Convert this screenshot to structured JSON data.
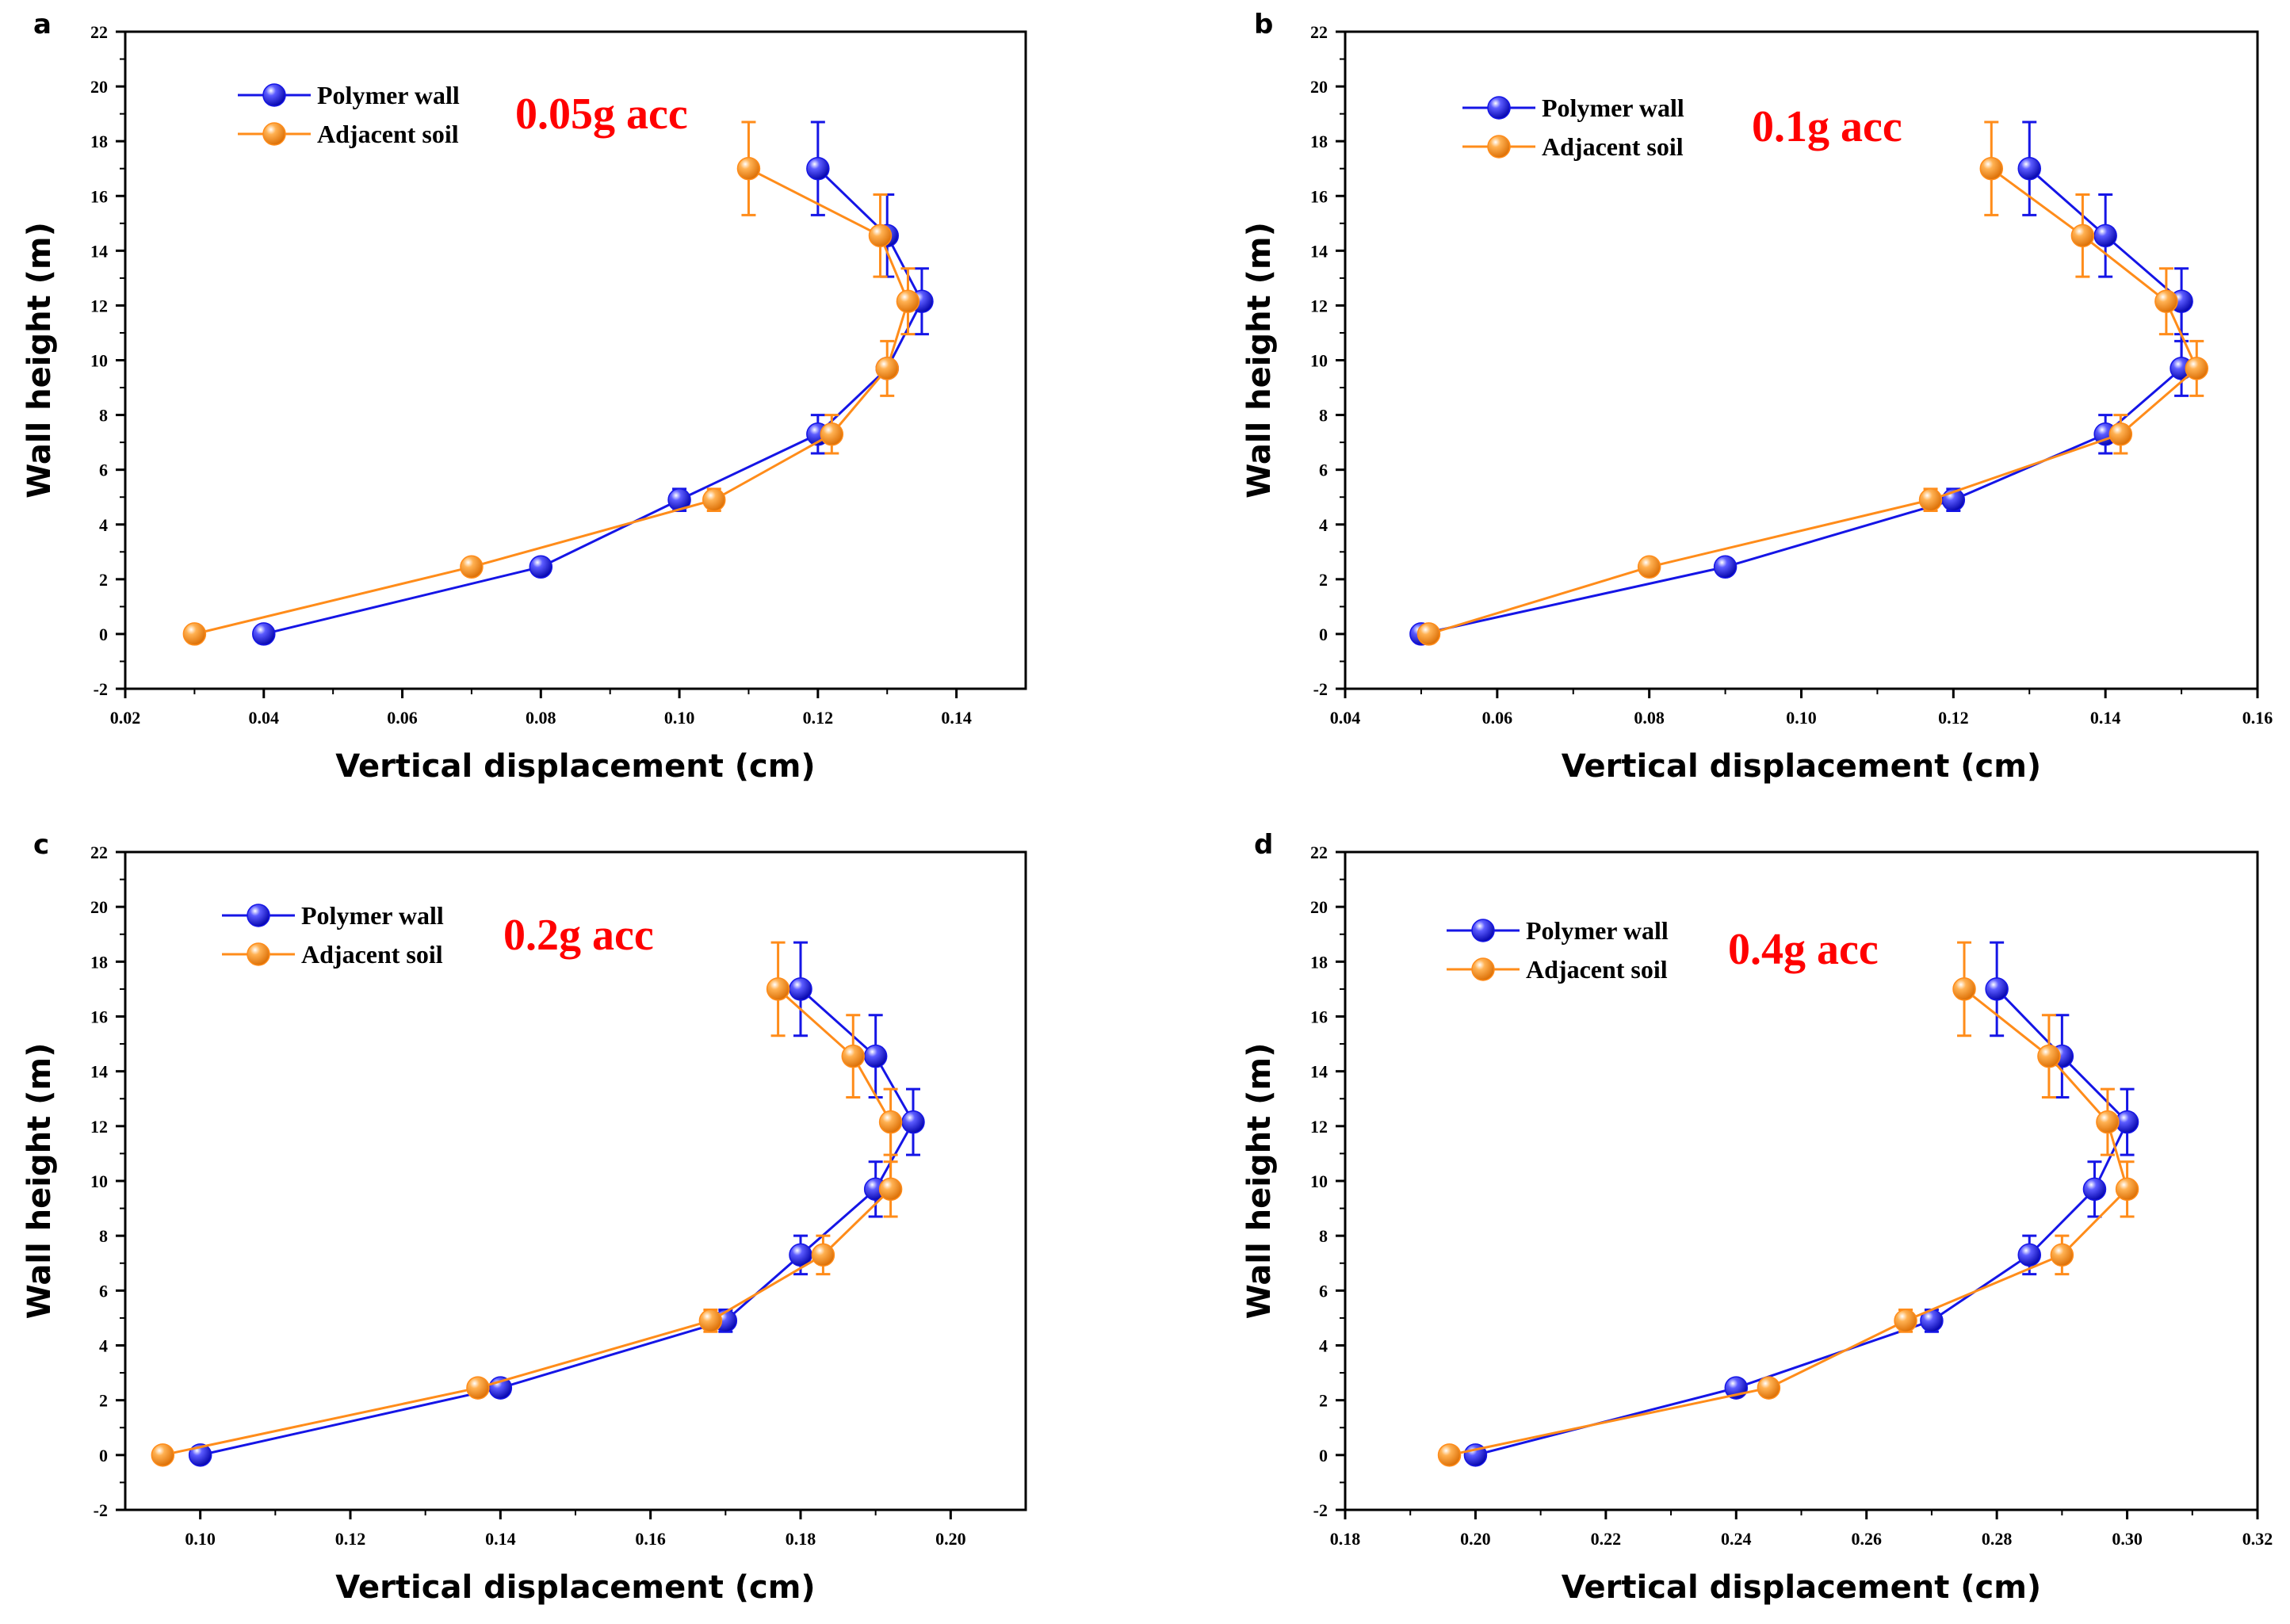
{
  "series_styles": [
    {
      "color": "#1515e6",
      "marker": "blue-sphere"
    },
    {
      "color": "#ff8c1a",
      "marker": "orange-sphere"
    }
  ],
  "chart_data": [
    {
      "type": "line",
      "panel": "a",
      "annotation": "0.05g acc",
      "annotation_color": "#ff0000",
      "xlabel": "Vertical displacement (cm)",
      "ylabel": "Wall height (m)",
      "xlim": [
        0.02,
        0.15
      ],
      "ylim": [
        -2,
        22
      ],
      "xticks": [
        "0.02",
        "0.04",
        "0.06",
        "0.08",
        "0.10",
        "0.12",
        "0.14"
      ],
      "yticks": [
        "-2",
        "0",
        "2",
        "4",
        "6",
        "8",
        "10",
        "12",
        "14",
        "16",
        "18",
        "20",
        "22"
      ],
      "series": [
        {
          "name": "Polymer wall",
          "x": [
            0.04,
            0.08,
            0.1,
            0.12,
            0.13,
            0.135,
            0.13,
            0.12
          ],
          "y": [
            0,
            2.45,
            4.9,
            7.3,
            9.7,
            12.15,
            14.55,
            17.0
          ],
          "yerr": [
            0,
            0,
            0.4,
            0.7,
            0,
            1.2,
            1.5,
            1.7
          ]
        },
        {
          "name": "Adjacent soil",
          "x": [
            0.03,
            0.07,
            0.105,
            0.122,
            0.13,
            0.133,
            0.129,
            0.11
          ],
          "y": [
            0,
            2.45,
            4.9,
            7.3,
            9.7,
            12.15,
            14.55,
            17.0
          ],
          "yerr": [
            0,
            0,
            0.4,
            0.7,
            1.0,
            1.2,
            1.5,
            1.7
          ]
        }
      ]
    },
    {
      "type": "line",
      "panel": "b",
      "annotation": "0.1g acc",
      "annotation_color": "#ff0000",
      "xlabel": "Vertical displacement (cm)",
      "ylabel": "Wall height (m)",
      "xlim": [
        0.04,
        0.16
      ],
      "ylim": [
        -2,
        22
      ],
      "xticks": [
        "0.04",
        "0.06",
        "0.08",
        "0.10",
        "0.12",
        "0.14",
        "0.16"
      ],
      "yticks": [
        "-2",
        "0",
        "2",
        "4",
        "6",
        "8",
        "10",
        "12",
        "14",
        "16",
        "18",
        "20",
        "22"
      ],
      "series": [
        {
          "name": "Polymer wall",
          "x": [
            0.05,
            0.09,
            0.12,
            0.14,
            0.15,
            0.15,
            0.14,
            0.13
          ],
          "y": [
            0,
            2.45,
            4.9,
            7.3,
            9.7,
            12.15,
            14.55,
            17.0
          ],
          "yerr": [
            0,
            0,
            0.4,
            0.7,
            1.0,
            1.2,
            1.5,
            1.7
          ]
        },
        {
          "name": "Adjacent soil",
          "x": [
            0.051,
            0.08,
            0.117,
            0.142,
            0.152,
            0.148,
            0.137,
            0.125
          ],
          "y": [
            0,
            2.45,
            4.9,
            7.3,
            9.7,
            12.15,
            14.55,
            17.0
          ],
          "yerr": [
            0,
            0,
            0.4,
            0.7,
            1.0,
            1.2,
            1.5,
            1.7
          ]
        }
      ]
    },
    {
      "type": "line",
      "panel": "c",
      "annotation": "0.2g acc",
      "annotation_color": "#ff0000",
      "xlabel": "Vertical displacement (cm)",
      "ylabel": "Wall height (m)",
      "xlim": [
        0.09,
        0.21
      ],
      "ylim": [
        -2,
        22
      ],
      "xticks": [
        "0.10",
        "0.12",
        "0.14",
        "0.16",
        "0.18",
        "0.20"
      ],
      "yticks": [
        "-2",
        "0",
        "2",
        "4",
        "6",
        "8",
        "10",
        "12",
        "14",
        "16",
        "18",
        "20",
        "22"
      ],
      "series": [
        {
          "name": "Polymer wall",
          "x": [
            0.1,
            0.14,
            0.17,
            0.18,
            0.19,
            0.195,
            0.19,
            0.18
          ],
          "y": [
            0,
            2.45,
            4.9,
            7.3,
            9.7,
            12.15,
            14.55,
            17.0
          ],
          "yerr": [
            0,
            0,
            0.4,
            0.7,
            1.0,
            1.2,
            1.5,
            1.7
          ]
        },
        {
          "name": "Adjacent soil",
          "x": [
            0.095,
            0.137,
            0.168,
            0.183,
            0.192,
            0.192,
            0.187,
            0.177
          ],
          "y": [
            0,
            2.45,
            4.9,
            7.3,
            9.7,
            12.15,
            14.55,
            17.0
          ],
          "yerr": [
            0,
            0,
            0.4,
            0.7,
            1.0,
            1.2,
            1.5,
            1.7
          ]
        }
      ]
    },
    {
      "type": "line",
      "panel": "d",
      "annotation": "0.4g acc",
      "annotation_color": "#ff0000",
      "xlabel": "Vertical displacement (cm)",
      "ylabel": "Wall height (m)",
      "xlim": [
        0.18,
        0.32
      ],
      "ylim": [
        -2,
        22
      ],
      "xticks": [
        "0.18",
        "0.20",
        "0.22",
        "0.24",
        "0.26",
        "0.28",
        "0.30",
        "0.32"
      ],
      "yticks": [
        "-2",
        "0",
        "2",
        "4",
        "6",
        "8",
        "10",
        "12",
        "14",
        "16",
        "18",
        "20",
        "22"
      ],
      "series": [
        {
          "name": "Polymer wall",
          "x": [
            0.2,
            0.24,
            0.27,
            0.285,
            0.295,
            0.3,
            0.29,
            0.28
          ],
          "y": [
            0,
            2.45,
            4.9,
            7.3,
            9.7,
            12.15,
            14.55,
            17.0
          ],
          "yerr": [
            0,
            0,
            0.4,
            0.7,
            1.0,
            1.2,
            1.5,
            1.7
          ]
        },
        {
          "name": "Adjacent soil",
          "x": [
            0.196,
            0.245,
            0.266,
            0.29,
            0.3,
            0.297,
            0.288,
            0.275
          ],
          "y": [
            0,
            2.45,
            4.9,
            7.3,
            9.7,
            12.15,
            14.55,
            17.0
          ],
          "yerr": [
            0,
            0,
            0.4,
            0.7,
            1.0,
            1.2,
            1.5,
            1.7
          ]
        }
      ]
    }
  ]
}
